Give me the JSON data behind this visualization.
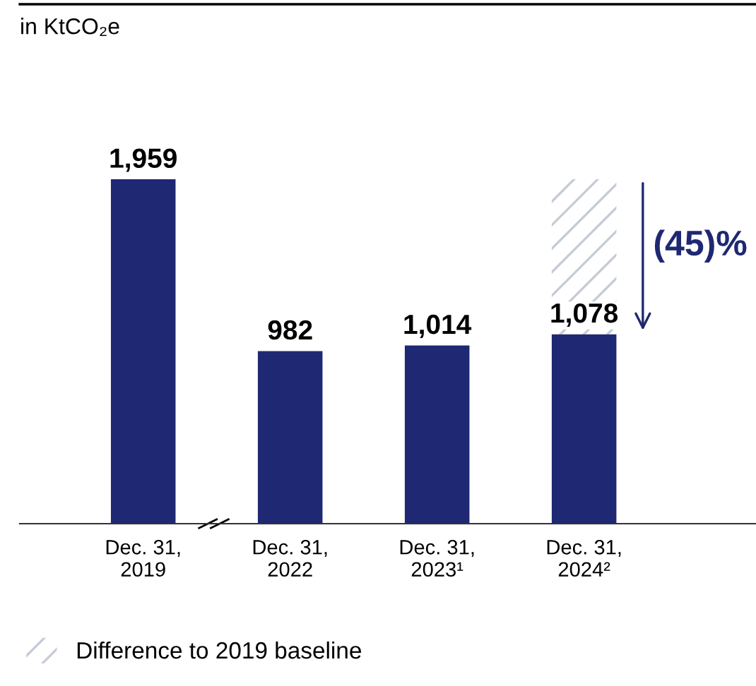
{
  "chart_data": {
    "type": "bar",
    "stacked": true,
    "categories": [
      "Dec. 31,\n2019",
      "Dec. 31,\n2022",
      "Dec. 31,\n2023¹",
      "Dec. 31,\n2024²"
    ],
    "series": [
      {
        "color": "#1f2872",
        "values": [
          1959,
          982,
          1014,
          1078
        ],
        "value_labels": [
          "1,959",
          "982",
          "1,014",
          "1,078"
        ]
      },
      {
        "name": "Difference to 2019 baseline",
        "color": "#c5ccd6",
        "values": [
          null,
          null,
          null,
          881
        ]
      }
    ],
    "annotations": [
      "in KtCO₂e",
      "(45)%"
    ],
    "legend": "bottom left",
    "grid": false
  }
}
